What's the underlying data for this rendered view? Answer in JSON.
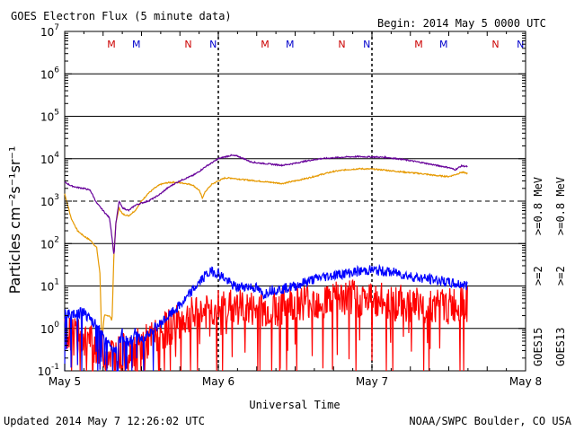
{
  "title": "GOES Electron Flux (5 minute data)",
  "begin": "Begin: 2014 May 5 0000 UTC",
  "updated": "Updated 2014 May  7 12:26:02 UTC",
  "credit": "NOAA/SWPC Boulder, CO USA",
  "chart_data": {
    "type": "line",
    "xlabel": "Universal Time",
    "ylabel": "Particles cm⁻²s⁻¹sr⁻¹",
    "yscale": "log",
    "ylim": [
      0.1,
      10000000
    ],
    "xlim_hours": [
      0,
      72
    ],
    "x_tick_labels": [
      "May 5",
      "May 6",
      "May 7",
      "May 8"
    ],
    "y_tick_labels": [
      {
        "base": "10",
        "exp": "-1"
      },
      {
        "base": "10",
        "exp": "0"
      },
      {
        "base": "10",
        "exp": "1"
      },
      {
        "base": "10",
        "exp": "2"
      },
      {
        "base": "10",
        "exp": "3"
      },
      {
        "base": "10",
        "exp": "4"
      },
      {
        "base": "10",
        "exp": "5"
      },
      {
        "base": "10",
        "exp": "6"
      },
      {
        "base": "10",
        "exp": "7"
      }
    ],
    "threshold_line": 1000,
    "grid": true,
    "day_markers": [
      {
        "label": "M",
        "color": "#cc0000",
        "x_hours": 7.3
      },
      {
        "label": "M",
        "color": "#0000cc",
        "x_hours": 11.2
      },
      {
        "label": "N",
        "color": "#cc0000",
        "x_hours": 19.3
      },
      {
        "label": "N",
        "color": "#0000cc",
        "x_hours": 23.2
      },
      {
        "label": "M",
        "color": "#cc0000",
        "x_hours": 31.3
      },
      {
        "label": "M",
        "color": "#0000cc",
        "x_hours": 35.2
      },
      {
        "label": "N",
        "color": "#cc0000",
        "x_hours": 43.3
      },
      {
        "label": "N",
        "color": "#0000cc",
        "x_hours": 47.2
      },
      {
        "label": "M",
        "color": "#cc0000",
        "x_hours": 55.3
      },
      {
        "label": "M",
        "color": "#0000cc",
        "x_hours": 59.2
      },
      {
        "label": "N",
        "color": "#cc0000",
        "x_hours": 67.3
      },
      {
        "label": "N",
        "color": "#0000cc",
        "x_hours": 71.2
      }
    ],
    "legend": {
      "groups": [
        {
          "name": "GOES15",
          "series": [
            {
              "label": ">=0.8  MeV",
              "color": "#660099"
            },
            {
              "label": ">=2",
              "color": "#0000ff"
            }
          ]
        },
        {
          "name": "GOES13",
          "series": [
            {
              "label": ">=0.8  MeV",
              "color": "#e69900"
            },
            {
              "label": ">=2",
              "color": "#ff0000"
            }
          ]
        }
      ]
    },
    "series": [
      {
        "name": "GOES15 >=0.8 MeV",
        "color": "#660099",
        "points": [
          [
            0,
            2800
          ],
          [
            1,
            2300
          ],
          [
            2,
            2100
          ],
          [
            3,
            2000
          ],
          [
            4,
            1800
          ],
          [
            5,
            900
          ],
          [
            6,
            600
          ],
          [
            7,
            400
          ],
          [
            7.4,
            140
          ],
          [
            7.7,
            50
          ],
          [
            8,
            300
          ],
          [
            8.5,
            1000
          ],
          [
            9,
            700
          ],
          [
            10,
            600
          ],
          [
            11,
            800
          ],
          [
            12,
            900
          ],
          [
            13,
            1000
          ],
          [
            14,
            1200
          ],
          [
            15,
            1500
          ],
          [
            16,
            2000
          ],
          [
            17,
            2500
          ],
          [
            18,
            3000
          ],
          [
            19,
            3500
          ],
          [
            20,
            4000
          ],
          [
            21,
            5000
          ],
          [
            22,
            6500
          ],
          [
            23,
            8000
          ],
          [
            24,
            10000
          ],
          [
            25,
            11000
          ],
          [
            26,
            12000
          ],
          [
            27,
            11500
          ],
          [
            28,
            10000
          ],
          [
            29,
            8500
          ],
          [
            30,
            8000
          ],
          [
            32,
            7500
          ],
          [
            34,
            7000
          ],
          [
            36,
            7800
          ],
          [
            38,
            9000
          ],
          [
            40,
            10000
          ],
          [
            42,
            10500
          ],
          [
            44,
            11000
          ],
          [
            46,
            11200
          ],
          [
            48,
            11000
          ],
          [
            50,
            10800
          ],
          [
            52,
            10000
          ],
          [
            54,
            9000
          ],
          [
            56,
            8000
          ],
          [
            58,
            7000
          ],
          [
            60,
            6200
          ],
          [
            61,
            5500
          ],
          [
            62,
            6800
          ],
          [
            63,
            6500
          ]
        ]
      },
      {
        "name": "GOES13 >=0.8 MeV",
        "color": "#e69900",
        "points": [
          [
            0,
            1500
          ],
          [
            1,
            400
          ],
          [
            2,
            200
          ],
          [
            3,
            150
          ],
          [
            4,
            120
          ],
          [
            5,
            80
          ],
          [
            5.5,
            20
          ],
          [
            5.8,
            0.5
          ],
          [
            6.2,
            2
          ],
          [
            7,
            2
          ],
          [
            7.4,
            1.5
          ],
          [
            7.7,
            60
          ],
          [
            8,
            300
          ],
          [
            8.5,
            700
          ],
          [
            9,
            500
          ],
          [
            10,
            450
          ],
          [
            11,
            600
          ],
          [
            12,
            1000
          ],
          [
            13,
            1500
          ],
          [
            14,
            2000
          ],
          [
            15,
            2500
          ],
          [
            16,
            2700
          ],
          [
            17,
            2800
          ],
          [
            18,
            2700
          ],
          [
            19,
            2600
          ],
          [
            20,
            2400
          ],
          [
            21,
            1800
          ],
          [
            21.5,
            1200
          ],
          [
            22,
            1700
          ],
          [
            23,
            2500
          ],
          [
            24,
            3000
          ],
          [
            25,
            3500
          ],
          [
            26,
            3500
          ],
          [
            28,
            3200
          ],
          [
            30,
            3000
          ],
          [
            32,
            2800
          ],
          [
            34,
            2600
          ],
          [
            36,
            3000
          ],
          [
            38,
            3500
          ],
          [
            40,
            4200
          ],
          [
            42,
            5000
          ],
          [
            44,
            5500
          ],
          [
            46,
            5800
          ],
          [
            48,
            5700
          ],
          [
            50,
            5400
          ],
          [
            52,
            5000
          ],
          [
            54,
            4700
          ],
          [
            56,
            4400
          ],
          [
            58,
            4000
          ],
          [
            60,
            3800
          ],
          [
            61,
            4200
          ],
          [
            62,
            4800
          ],
          [
            63,
            4500
          ]
        ]
      },
      {
        "name": "GOES15 >=2",
        "color": "#0000ff",
        "points": [
          [
            0,
            2.5
          ],
          [
            1,
            2
          ],
          [
            2,
            2.2
          ],
          [
            3,
            2.5
          ],
          [
            4,
            1.5
          ],
          [
            5,
            1.2
          ],
          [
            6,
            0.6
          ],
          [
            7,
            0.4
          ],
          [
            8,
            0.3
          ],
          [
            9,
            0.8
          ],
          [
            10,
            0.4
          ],
          [
            11,
            0.8
          ],
          [
            12,
            0.5
          ],
          [
            13,
            0.8
          ],
          [
            14,
            1
          ],
          [
            15,
            1.3
          ],
          [
            16,
            1.8
          ],
          [
            17,
            2.5
          ],
          [
            18,
            3.5
          ],
          [
            19,
            5
          ],
          [
            20,
            8
          ],
          [
            21,
            12
          ],
          [
            22,
            18
          ],
          [
            23,
            22
          ],
          [
            24,
            20
          ],
          [
            25,
            15
          ],
          [
            26,
            11
          ],
          [
            27,
            9
          ],
          [
            28,
            10
          ],
          [
            30,
            9
          ],
          [
            31,
            6
          ],
          [
            32,
            8
          ],
          [
            34,
            8.5
          ],
          [
            36,
            10
          ],
          [
            38,
            13
          ],
          [
            40,
            16
          ],
          [
            42,
            18
          ],
          [
            44,
            20
          ],
          [
            46,
            22
          ],
          [
            48,
            24
          ],
          [
            50,
            22
          ],
          [
            52,
            20
          ],
          [
            54,
            17
          ],
          [
            56,
            15
          ],
          [
            58,
            14
          ],
          [
            60,
            12
          ],
          [
            61,
            11
          ],
          [
            62,
            11
          ],
          [
            63,
            10
          ]
        ]
      },
      {
        "name": "GOES13 >=2",
        "color": "#ff0000",
        "points": [
          [
            0,
            0.8
          ],
          [
            2,
            0.6
          ],
          [
            4,
            0.5
          ],
          [
            6,
            0.3
          ],
          [
            8,
            0.25
          ],
          [
            10,
            0.3
          ],
          [
            12,
            0.4
          ],
          [
            14,
            0.6
          ],
          [
            16,
            1
          ],
          [
            18,
            1.5
          ],
          [
            20,
            2
          ],
          [
            22,
            2.5
          ],
          [
            24,
            3
          ],
          [
            26,
            3.2
          ],
          [
            28,
            3
          ],
          [
            30,
            2.6
          ],
          [
            32,
            2.8
          ],
          [
            34,
            3.3
          ],
          [
            36,
            4
          ],
          [
            38,
            4.5
          ],
          [
            40,
            4.5
          ],
          [
            42,
            4.8
          ],
          [
            44,
            5
          ],
          [
            46,
            5
          ],
          [
            48,
            4.6
          ],
          [
            50,
            4.3
          ],
          [
            52,
            4
          ],
          [
            54,
            3.8
          ],
          [
            56,
            3.5
          ],
          [
            58,
            3.4
          ],
          [
            60,
            3.2
          ],
          [
            61,
            3.5
          ],
          [
            62,
            3.8
          ],
          [
            63,
            3.6
          ]
        ]
      }
    ]
  }
}
